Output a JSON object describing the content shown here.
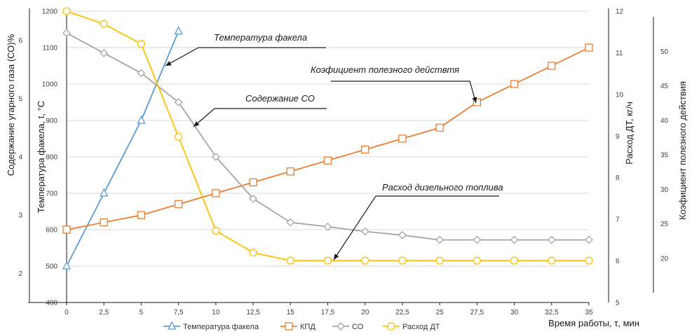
{
  "chart_data": {
    "type": "line",
    "xlabel": "Время работы, τ, мин",
    "x": [
      0,
      2.5,
      5,
      7.5,
      10,
      12.5,
      15,
      17.5,
      20,
      22.5,
      25,
      27.5,
      30,
      32.5,
      35
    ],
    "x_tick_labels": [
      "0",
      "2,5",
      "5",
      "7,5",
      "10",
      "12,5",
      "15",
      "17,5",
      "20",
      "22,5",
      "25",
      "27,5",
      "30",
      "32,5",
      "35"
    ],
    "grid": "horizontal",
    "legend_position": "bottom",
    "axes": {
      "co": {
        "label": "Содержание угарного газа (СО)%",
        "position": "far-left",
        "ticks": [
          "2",
          "3",
          "4",
          "5",
          "6"
        ],
        "range": [
          1.5,
          6.5
        ]
      },
      "temp": {
        "label": "Температура факела, t, °C",
        "position": "left",
        "ticks": [
          "400",
          "500",
          "600",
          "700",
          "800",
          "900",
          "1000",
          "1100",
          "1200"
        ],
        "range": [
          400,
          1200
        ]
      },
      "fuel": {
        "label": "Расход ДТ, кг/ч",
        "position": "right",
        "ticks": [
          "5",
          "6",
          "7",
          "8",
          "9",
          "10",
          "11",
          "12"
        ],
        "range": [
          5,
          12
        ]
      },
      "eff": {
        "label": "Коэфициент полезного действия",
        "position": "far-right",
        "ticks": [
          "20",
          "25",
          "30",
          "35",
          "40",
          "45",
          "50"
        ],
        "range": [
          15,
          55
        ]
      }
    },
    "series": [
      {
        "name": "Температура факела",
        "axis": "temp",
        "color": "#5b9bd5",
        "marker": "triangle",
        "x": [
          0,
          2.5,
          5,
          7.5
        ],
        "values": [
          500,
          700,
          900,
          1145
        ]
      },
      {
        "name": "КПД",
        "axis": "temp",
        "color": "#ed7d31",
        "marker": "square",
        "x": [
          0,
          2.5,
          5,
          7.5,
          10,
          12.5,
          15,
          17.5,
          20,
          22.5,
          25,
          27.5,
          30,
          32.5,
          35
        ],
        "values": [
          600,
          620,
          640,
          670,
          700,
          730,
          760,
          790,
          820,
          850,
          880,
          950,
          1000,
          1050,
          1100
        ]
      },
      {
        "name": "СО",
        "axis": "temp",
        "color": "#a5a5a5",
        "marker": "diamond",
        "x": [
          0,
          2.5,
          5,
          7.5,
          10,
          12.5,
          15,
          17.5,
          20,
          22.5,
          25,
          27.5,
          30,
          32.5,
          35
        ],
        "values": [
          1140,
          1085,
          1030,
          950,
          800,
          685,
          620,
          608,
          595,
          585,
          572,
          572,
          572,
          572,
          572
        ]
      },
      {
        "name": "Расход ДТ",
        "axis": "temp",
        "color": "#ffc000",
        "marker": "circle",
        "x": [
          0,
          2.5,
          5,
          7.5,
          10,
          12.5,
          15,
          17.5,
          20,
          22.5,
          25,
          27.5,
          30,
          32.5,
          35
        ],
        "values": [
          1200,
          1165,
          1110,
          855,
          597,
          537,
          515,
          515,
          515,
          515,
          515,
          515,
          515,
          515,
          515
        ]
      }
    ],
    "annotations": [
      {
        "id": "temp",
        "text": "Температура факела"
      },
      {
        "id": "eff",
        "text": "Коэфициент полезного действтя"
      },
      {
        "id": "co",
        "text": "Содержание СО"
      },
      {
        "id": "fuel",
        "text": "Расход дизельного топлива"
      }
    ]
  }
}
